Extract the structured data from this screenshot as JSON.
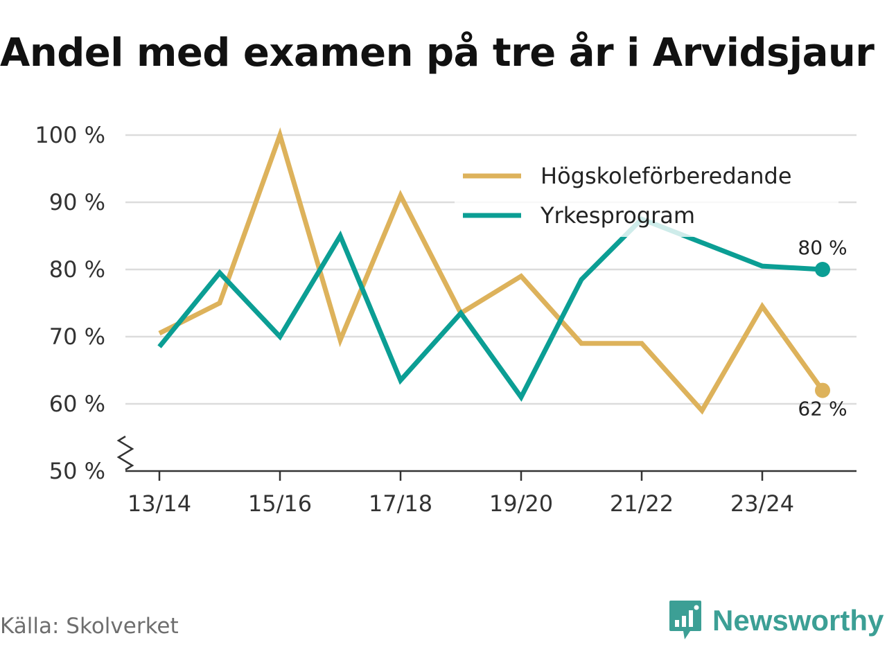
{
  "title": "Andel med examen på tre år i Arvidsjaur",
  "source": "Källa: Skolverket",
  "brand": {
    "name": "Newsworthy",
    "icon": "newsworthy-logo-icon",
    "color": "#3c9f95"
  },
  "chart_data": {
    "type": "line",
    "title": "Andel med examen på tre år i Arvidsjaur",
    "xlabel": "",
    "ylabel": "",
    "x": [
      "13/14",
      "14/15",
      "15/16",
      "16/17",
      "17/18",
      "18/19",
      "19/20",
      "20/21",
      "21/22",
      "22/23",
      "23/24",
      "24/25"
    ],
    "x_tick_labels": [
      "13/14",
      "15/16",
      "17/18",
      "19/20",
      "21/22",
      "23/24"
    ],
    "ylim": [
      50,
      100
    ],
    "y_ticks": [
      50,
      60,
      70,
      80,
      90,
      100
    ],
    "y_tick_labels": [
      "50 %",
      "60 %",
      "70 %",
      "80 %",
      "90 %",
      "100 %"
    ],
    "y_axis_break": true,
    "grid": true,
    "legend_position": "top-right",
    "series": [
      {
        "name": "Högskoleförberedande",
        "color": "#ddb25b",
        "values": [
          70.5,
          75,
          100,
          69.5,
          91,
          73.5,
          79,
          69,
          69,
          59,
          74.5,
          62
        ],
        "end_label": "62 %"
      },
      {
        "name": "Yrkesprogram",
        "color": "#0b9e94",
        "values": [
          68.5,
          79.5,
          70,
          85,
          63.5,
          73.5,
          61,
          78.5,
          87.5,
          84,
          80.5,
          80
        ],
        "end_label": "80 %"
      }
    ]
  }
}
